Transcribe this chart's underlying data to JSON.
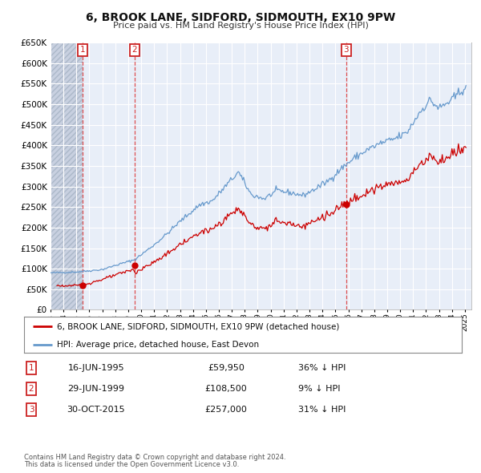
{
  "title": "6, BROOK LANE, SIDFORD, SIDMOUTH, EX10 9PW",
  "subtitle": "Price paid vs. HM Land Registry's House Price Index (HPI)",
  "legend_red": "6, BROOK LANE, SIDFORD, SIDMOUTH, EX10 9PW (detached house)",
  "legend_blue": "HPI: Average price, detached house, East Devon",
  "transactions": [
    {
      "num": 1,
      "date": "16-JUN-1995",
      "date_dec": 1995.46,
      "price": 59950,
      "pct": "36% ↓ HPI"
    },
    {
      "num": 2,
      "date": "29-JUN-1999",
      "date_dec": 1999.49,
      "price": 108500,
      "pct": "9% ↓ HPI"
    },
    {
      "num": 3,
      "date": "30-OCT-2015",
      "date_dec": 2015.83,
      "price": 257000,
      "pct": "31% ↓ HPI"
    }
  ],
  "footnote1": "Contains HM Land Registry data © Crown copyright and database right 2024.",
  "footnote2": "This data is licensed under the Open Government Licence v3.0.",
  "ylim": [
    0,
    650000
  ],
  "yticks": [
    0,
    50000,
    100000,
    150000,
    200000,
    250000,
    300000,
    350000,
    400000,
    450000,
    500000,
    550000,
    600000,
    650000
  ],
  "xmin": 1993.0,
  "xmax": 2025.5,
  "red_color": "#cc0000",
  "blue_color": "#6699cc",
  "bg_color": "#e8eef8",
  "grid_color": "#ffffff",
  "vline_color": "#dd3333",
  "box_color": "#cc2222",
  "hatch_bg": "#c8d0e0"
}
